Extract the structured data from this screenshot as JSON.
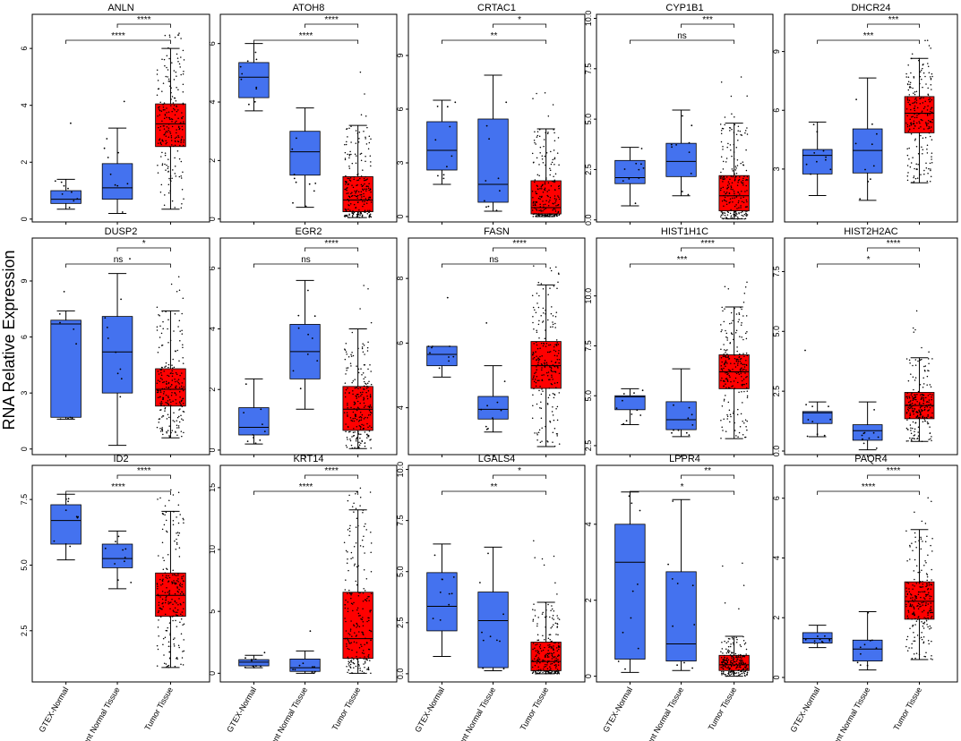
{
  "figure": {
    "ylabel": "RNA Relative Expression",
    "categories": [
      "GTEX-Normal",
      "Adjacent Normal Tissue",
      "Tumor Tissue"
    ],
    "colors": {
      "normal": "#4472ef",
      "tumor": "#ff0000",
      "points": "#000000",
      "frame": "#000000"
    }
  },
  "chart_data": [
    {
      "type": "box",
      "title": "ANLN",
      "ylim": [
        -0.1,
        7.2
      ],
      "yticks": [
        0,
        2,
        4,
        6
      ],
      "boxes": [
        {
          "group": "GTEX-Normal",
          "whisker_low": 0.35,
          "q1": 0.55,
          "median": 0.7,
          "q3": 1.0,
          "whisker_high": 1.4
        },
        {
          "group": "Adjacent Normal Tissue",
          "whisker_low": 0.2,
          "q1": 0.7,
          "median": 1.1,
          "q3": 1.95,
          "whisker_high": 3.2
        },
        {
          "group": "Tumor Tissue",
          "whisker_low": 0.35,
          "q1": 2.55,
          "median": 3.35,
          "q3": 4.05,
          "whisker_high": 6.0
        }
      ],
      "sig": [
        {
          "from": 2,
          "to": 3,
          "label": "****"
        },
        {
          "from": 1,
          "to": 3,
          "label": "****"
        }
      ]
    },
    {
      "type": "box",
      "title": "ATOH8",
      "ylim": [
        -0.1,
        7.0
      ],
      "yticks": [
        0,
        2,
        4,
        6
      ],
      "boxes": [
        {
          "group": "GTEX-Normal",
          "whisker_low": 3.7,
          "q1": 4.15,
          "median": 4.85,
          "q3": 5.35,
          "whisker_high": 6.0
        },
        {
          "group": "Adjacent Normal Tissue",
          "whisker_low": 0.4,
          "q1": 1.5,
          "median": 2.3,
          "q3": 3.0,
          "whisker_high": 3.8
        },
        {
          "group": "Tumor Tissue",
          "whisker_low": 0.05,
          "q1": 0.25,
          "median": 0.65,
          "q3": 1.45,
          "whisker_high": 3.2
        }
      ],
      "sig": [
        {
          "from": 2,
          "to": 3,
          "label": "****"
        },
        {
          "from": 1,
          "to": 3,
          "label": "****"
        }
      ]
    },
    {
      "type": "box",
      "title": "CRTAC1",
      "ylim": [
        -0.3,
        11.3
      ],
      "yticks": [
        0,
        3,
        6,
        9
      ],
      "boxes": [
        {
          "group": "GTEX-Normal",
          "whisker_low": 1.8,
          "q1": 2.6,
          "median": 3.7,
          "q3": 5.3,
          "whisker_high": 6.5
        },
        {
          "group": "Adjacent Normal Tissue",
          "whisker_low": 0.3,
          "q1": 0.8,
          "median": 1.8,
          "q3": 5.45,
          "whisker_high": 7.9
        },
        {
          "group": "Tumor Tissue",
          "whisker_low": 0.0,
          "q1": 0.15,
          "median": 0.5,
          "q3": 2.0,
          "whisker_high": 4.9
        }
      ],
      "sig": [
        {
          "from": 2,
          "to": 3,
          "label": "*"
        },
        {
          "from": 1,
          "to": 3,
          "label": "**"
        }
      ]
    },
    {
      "type": "box",
      "title": "CYP1B1",
      "ylim": [
        -0.1,
        10.2
      ],
      "yticks": [
        0.0,
        2.5,
        5.0,
        7.5,
        10.0
      ],
      "ytick_labels": [
        "0.0",
        "2.5",
        "5.0",
        "7.5",
        "10.0"
      ],
      "boxes": [
        {
          "group": "GTEX-Normal",
          "whisker_low": 0.7,
          "q1": 1.8,
          "median": 2.1,
          "q3": 2.95,
          "whisker_high": 3.6
        },
        {
          "group": "Adjacent Normal Tissue",
          "whisker_low": 1.2,
          "q1": 2.15,
          "median": 2.9,
          "q3": 3.8,
          "whisker_high": 5.45
        },
        {
          "group": "Tumor Tissue",
          "whisker_low": 0.05,
          "q1": 0.45,
          "median": 1.2,
          "q3": 2.2,
          "whisker_high": 4.8
        }
      ],
      "sig": [
        {
          "from": 2,
          "to": 3,
          "label": "***"
        },
        {
          "from": 1,
          "to": 3,
          "label": "ns"
        }
      ]
    },
    {
      "type": "box",
      "title": "DHCR24",
      "ylim": [
        0.3,
        10.9
      ],
      "yticks": [
        3,
        6,
        9
      ],
      "boxes": [
        {
          "group": "GTEX-Normal",
          "whisker_low": 1.65,
          "q1": 2.75,
          "median": 3.7,
          "q3": 4.0,
          "whisker_high": 5.4
        },
        {
          "group": "Adjacent Normal Tissue",
          "whisker_low": 1.4,
          "q1": 2.8,
          "median": 3.95,
          "q3": 5.05,
          "whisker_high": 7.65
        },
        {
          "group": "Tumor Tissue",
          "whisker_low": 2.3,
          "q1": 4.85,
          "median": 5.85,
          "q3": 6.7,
          "whisker_high": 8.65
        }
      ],
      "sig": [
        {
          "from": 2,
          "to": 3,
          "label": "***"
        },
        {
          "from": 1,
          "to": 3,
          "label": "***"
        }
      ]
    },
    {
      "type": "box",
      "title": "DUSP2",
      "ylim": [
        -0.3,
        11.3
      ],
      "yticks": [
        0,
        3,
        6,
        9
      ],
      "boxes": [
        {
          "group": "GTEX-Normal",
          "whisker_low": 1.6,
          "q1": 1.7,
          "median": 6.7,
          "q3": 6.9,
          "whisker_high": 7.4
        },
        {
          "group": "Adjacent Normal Tissue",
          "whisker_low": 0.2,
          "q1": 3.0,
          "median": 5.2,
          "q3": 7.1,
          "whisker_high": 9.4
        },
        {
          "group": "Tumor Tissue",
          "whisker_low": 0.6,
          "q1": 2.3,
          "median": 3.2,
          "q3": 4.3,
          "whisker_high": 7.4
        }
      ],
      "sig": [
        {
          "from": 2,
          "to": 3,
          "label": "*"
        },
        {
          "from": 1,
          "to": 3,
          "label": "ns"
        }
      ]
    },
    {
      "type": "box",
      "title": "EGR2",
      "ylim": [
        -0.15,
        7.0
      ],
      "yticks": [
        0,
        2,
        4,
        6
      ],
      "boxes": [
        {
          "group": "GTEX-Normal",
          "whisker_low": 0.2,
          "q1": 0.5,
          "median": 0.75,
          "q3": 1.4,
          "whisker_high": 2.35
        },
        {
          "group": "Adjacent Normal Tissue",
          "whisker_low": 1.35,
          "q1": 2.35,
          "median": 3.25,
          "q3": 4.15,
          "whisker_high": 5.6
        },
        {
          "group": "Tumor Tissue",
          "whisker_low": 0.05,
          "q1": 0.65,
          "median": 1.35,
          "q3": 2.1,
          "whisker_high": 4.0
        }
      ],
      "sig": [
        {
          "from": 2,
          "to": 3,
          "label": "****"
        },
        {
          "from": 1,
          "to": 3,
          "label": "ns"
        }
      ]
    },
    {
      "type": "box",
      "title": "FASN",
      "ylim": [
        2.55,
        9.25
      ],
      "yticks": [
        4,
        6,
        8
      ],
      "boxes": [
        {
          "group": "GTEX-Normal",
          "whisker_low": 4.95,
          "q1": 5.3,
          "median": 5.65,
          "q3": 5.9,
          "whisker_high": 5.9
        },
        {
          "group": "Adjacent Normal Tissue",
          "whisker_low": 3.25,
          "q1": 3.65,
          "median": 3.95,
          "q3": 4.35,
          "whisker_high": 5.3
        },
        {
          "group": "Tumor Tissue",
          "whisker_low": 2.8,
          "q1": 4.6,
          "median": 5.3,
          "q3": 6.05,
          "whisker_high": 7.8
        }
      ],
      "sig": [
        {
          "from": 2,
          "to": 3,
          "label": "****"
        },
        {
          "from": 1,
          "to": 3,
          "label": "ns"
        }
      ]
    },
    {
      "type": "box",
      "title": "HIST1H1C",
      "ylim": [
        2.05,
        12.9
      ],
      "yticks": [
        2.5,
        5.0,
        7.5,
        10.0
      ],
      "ytick_labels": [
        "2.5",
        "5.0",
        "7.5",
        "10.0"
      ],
      "boxes": [
        {
          "group": "GTEX-Normal",
          "whisker_low": 3.55,
          "q1": 4.3,
          "median": 4.95,
          "q3": 5.0,
          "whisker_high": 5.35
        },
        {
          "group": "Adjacent Normal Tissue",
          "whisker_low": 2.95,
          "q1": 3.3,
          "median": 3.8,
          "q3": 4.7,
          "whisker_high": 6.35
        },
        {
          "group": "Tumor Tissue",
          "whisker_low": 2.85,
          "q1": 5.35,
          "median": 6.2,
          "q3": 7.05,
          "whisker_high": 9.45
        }
      ],
      "sig": [
        {
          "from": 2,
          "to": 3,
          "label": "****"
        },
        {
          "from": 1,
          "to": 3,
          "label": "***"
        }
      ]
    },
    {
      "type": "box",
      "title": "HIST2H2AC",
      "ylim": [
        -0.15,
        8.9
      ],
      "yticks": [
        0.0,
        2.5,
        5.0,
        7.5
      ],
      "ytick_labels": [
        "0.0",
        "2.5",
        "5.0",
        "7.5"
      ],
      "boxes": [
        {
          "group": "GTEX-Normal",
          "whisker_low": 0.6,
          "q1": 1.15,
          "median": 1.6,
          "q3": 1.65,
          "whisker_high": 2.05
        },
        {
          "group": "Adjacent Normal Tissue",
          "whisker_low": 0.05,
          "q1": 0.45,
          "median": 0.85,
          "q3": 1.1,
          "whisker_high": 2.05
        },
        {
          "group": "Tumor Tissue",
          "whisker_low": 0.4,
          "q1": 1.35,
          "median": 1.9,
          "q3": 2.45,
          "whisker_high": 3.9
        }
      ],
      "sig": [
        {
          "from": 2,
          "to": 3,
          "label": "****"
        },
        {
          "from": 1,
          "to": 3,
          "label": "*"
        }
      ]
    },
    {
      "type": "box",
      "title": "ID2",
      "ylim": [
        0.55,
        8.8
      ],
      "yticks": [
        2.5,
        5.0,
        7.5
      ],
      "ytick_labels": [
        "2.5",
        "5.0",
        "7.5"
      ],
      "boxes": [
        {
          "group": "GTEX-Normal",
          "whisker_low": 5.2,
          "q1": 5.8,
          "median": 6.7,
          "q3": 7.3,
          "whisker_high": 7.7
        },
        {
          "group": "Adjacent Normal Tissue",
          "whisker_low": 4.1,
          "q1": 4.9,
          "median": 5.25,
          "q3": 5.8,
          "whisker_high": 6.3
        },
        {
          "group": "Tumor Tissue",
          "whisker_low": 1.1,
          "q1": 3.05,
          "median": 3.85,
          "q3": 4.7,
          "whisker_high": 7.05
        }
      ],
      "sig": [
        {
          "from": 2,
          "to": 3,
          "label": "****"
        },
        {
          "from": 1,
          "to": 3,
          "label": "****"
        }
      ]
    },
    {
      "type": "box",
      "title": "KRT14",
      "ylim": [
        -0.7,
        16.8
      ],
      "yticks": [
        0,
        5,
        10,
        15
      ],
      "boxes": [
        {
          "group": "GTEX-Normal",
          "whisker_low": 0.45,
          "q1": 0.6,
          "median": 0.9,
          "q3": 1.1,
          "whisker_high": 1.45
        },
        {
          "group": "Adjacent Normal Tissue",
          "whisker_low": 0.0,
          "q1": 0.15,
          "median": 0.45,
          "q3": 1.15,
          "whisker_high": 1.8
        },
        {
          "group": "Tumor Tissue",
          "whisker_low": 0.0,
          "q1": 1.2,
          "median": 2.8,
          "q3": 6.55,
          "whisker_high": 13.2
        }
      ],
      "sig": [
        {
          "from": 2,
          "to": 3,
          "label": "****"
        },
        {
          "from": 1,
          "to": 3,
          "label": "****"
        }
      ]
    },
    {
      "type": "box",
      "title": "LGALS4",
      "ylim": [
        -0.4,
        10.2
      ],
      "yticks": [
        0.0,
        2.5,
        5.0,
        7.5,
        10.0
      ],
      "ytick_labels": [
        "0.0",
        "2.5",
        "5.0",
        "7.5",
        "10.0"
      ],
      "boxes": [
        {
          "group": "GTEX-Normal",
          "whisker_low": 0.85,
          "q1": 2.1,
          "median": 3.3,
          "q3": 4.95,
          "whisker_high": 6.35
        },
        {
          "group": "Adjacent Normal Tissue",
          "whisker_low": 0.15,
          "q1": 0.3,
          "median": 2.6,
          "q3": 4.0,
          "whisker_high": 6.2
        },
        {
          "group": "Tumor Tissue",
          "whisker_low": 0.0,
          "q1": 0.15,
          "median": 0.6,
          "q3": 1.55,
          "whisker_high": 3.5
        }
      ],
      "sig": [
        {
          "from": 2,
          "to": 3,
          "label": "*"
        },
        {
          "from": 1,
          "to": 3,
          "label": "**"
        }
      ]
    },
    {
      "type": "box",
      "title": "LPPR4",
      "ylim": [
        -0.15,
        5.55
      ],
      "yticks": [
        0,
        2,
        4
      ],
      "boxes": [
        {
          "group": "GTEX-Normal",
          "whisker_low": 0.1,
          "q1": 0.45,
          "median": 3.0,
          "q3": 4.0,
          "whisker_high": 4.85
        },
        {
          "group": "Adjacent Normal Tissue",
          "whisker_low": 0.15,
          "q1": 0.4,
          "median": 0.85,
          "q3": 2.75,
          "whisker_high": 4.65
        },
        {
          "group": "Tumor Tissue",
          "whisker_low": 0.0,
          "q1": 0.15,
          "median": 0.3,
          "q3": 0.55,
          "whisker_high": 1.05
        }
      ],
      "sig": [
        {
          "from": 2,
          "to": 3,
          "label": "**"
        },
        {
          "from": 1,
          "to": 3,
          "label": "*"
        }
      ]
    },
    {
      "type": "box",
      "title": "PAQR4",
      "ylim": [
        -0.15,
        7.1
      ],
      "yticks": [
        0,
        2,
        4,
        6
      ],
      "boxes": [
        {
          "group": "GTEX-Normal",
          "whisker_low": 1.0,
          "q1": 1.15,
          "median": 1.3,
          "q3": 1.5,
          "whisker_high": 1.75
        },
        {
          "group": "Adjacent Normal Tissue",
          "whisker_low": 0.25,
          "q1": 0.55,
          "median": 0.95,
          "q3": 1.25,
          "whisker_high": 2.2
        },
        {
          "group": "Tumor Tissue",
          "whisker_low": 0.6,
          "q1": 1.95,
          "median": 2.55,
          "q3": 3.2,
          "whisker_high": 4.95
        }
      ],
      "sig": [
        {
          "from": 2,
          "to": 3,
          "label": "****"
        },
        {
          "from": 1,
          "to": 3,
          "label": "****"
        }
      ]
    }
  ]
}
